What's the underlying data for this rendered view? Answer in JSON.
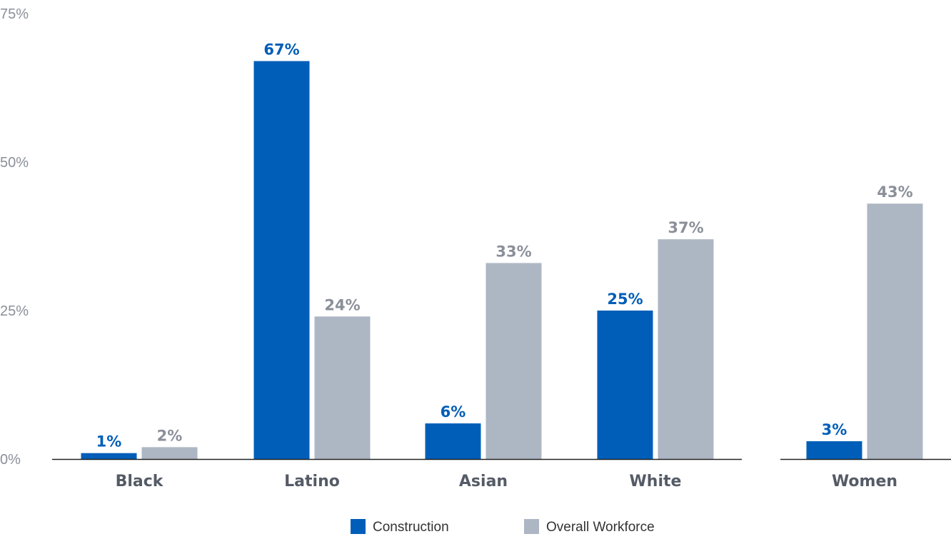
{
  "chart_data": {
    "type": "bar",
    "categories": [
      "Black",
      "Latino",
      "Asian",
      "White",
      "Women"
    ],
    "series": [
      {
        "name": "Construction",
        "values": [
          1,
          67,
          6,
          25,
          3
        ],
        "labels": [
          "1%",
          "67%",
          "6%",
          "25%",
          "3%"
        ],
        "color": "#005eb8"
      },
      {
        "name": "Overall Workforce",
        "values": [
          2,
          24,
          33,
          37,
          43
        ],
        "labels": [
          "2%",
          "24%",
          "33%",
          "37%",
          "43%"
        ],
        "color": "#adb7c4"
      }
    ],
    "y_ticks": [
      {
        "value": 0,
        "label": "0%"
      },
      {
        "value": 25,
        "label": "25%"
      },
      {
        "value": 50,
        "label": "50%"
      },
      {
        "value": 75,
        "label": "75%"
      }
    ],
    "ylim": [
      0,
      75
    ],
    "grid": false,
    "legend_position": "bottom-center",
    "title": "",
    "xlabel": "",
    "ylabel": ""
  }
}
